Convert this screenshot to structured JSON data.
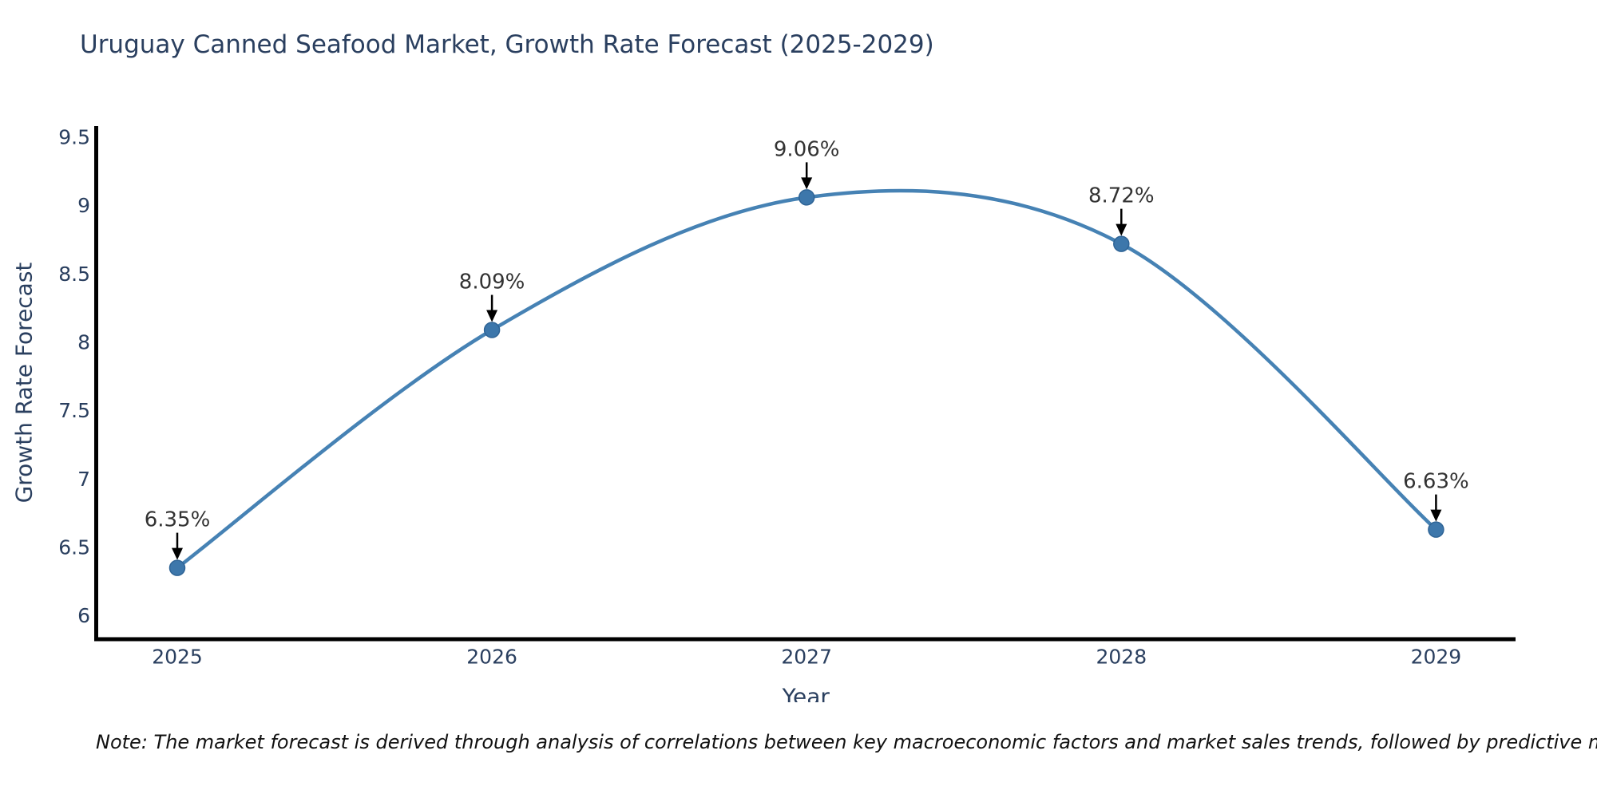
{
  "title": "Uruguay Canned Seafood Market, Growth Rate Forecast (2025-2029)",
  "note": "Note: The market forecast is derived through analysis of correlations between key macroeconomic factors and market sales trends, followed by predictive modeling to project future sales",
  "chart_data": {
    "type": "line",
    "title": "Uruguay Canned Seafood Market, Growth Rate Forecast (2025-2029)",
    "xlabel": "Year",
    "ylabel": "Growth Rate Forecast",
    "categories": [
      2025,
      2026,
      2027,
      2028,
      2029
    ],
    "values": [
      6.35,
      8.09,
      9.06,
      8.72,
      6.63
    ],
    "point_labels": [
      "6.35%",
      "8.09%",
      "9.06%",
      "8.72%",
      "6.63%"
    ],
    "yticks": [
      6,
      6.5,
      7,
      7.5,
      8,
      8.5,
      9,
      9.5
    ],
    "xlim": [
      2024.74,
      2029.25
    ],
    "ylim": [
      5.82,
      9.58
    ],
    "grid": false,
    "legend": false,
    "line_shape": "spline",
    "annotation_style": "label-above-with-down-arrow",
    "colors": {
      "line": "#4682b4",
      "marker": "#3d77ab",
      "marker_edge": "#2f6496",
      "axis_line": "#000000",
      "tick_text": "#2a3f5f",
      "axis_title_text": "#2a3f5f",
      "title_text": "#2a3f5f",
      "annotation_text": "#333333",
      "annotation_arrow": "#000000",
      "note_text": "#111111",
      "background": "#ffffff"
    }
  }
}
